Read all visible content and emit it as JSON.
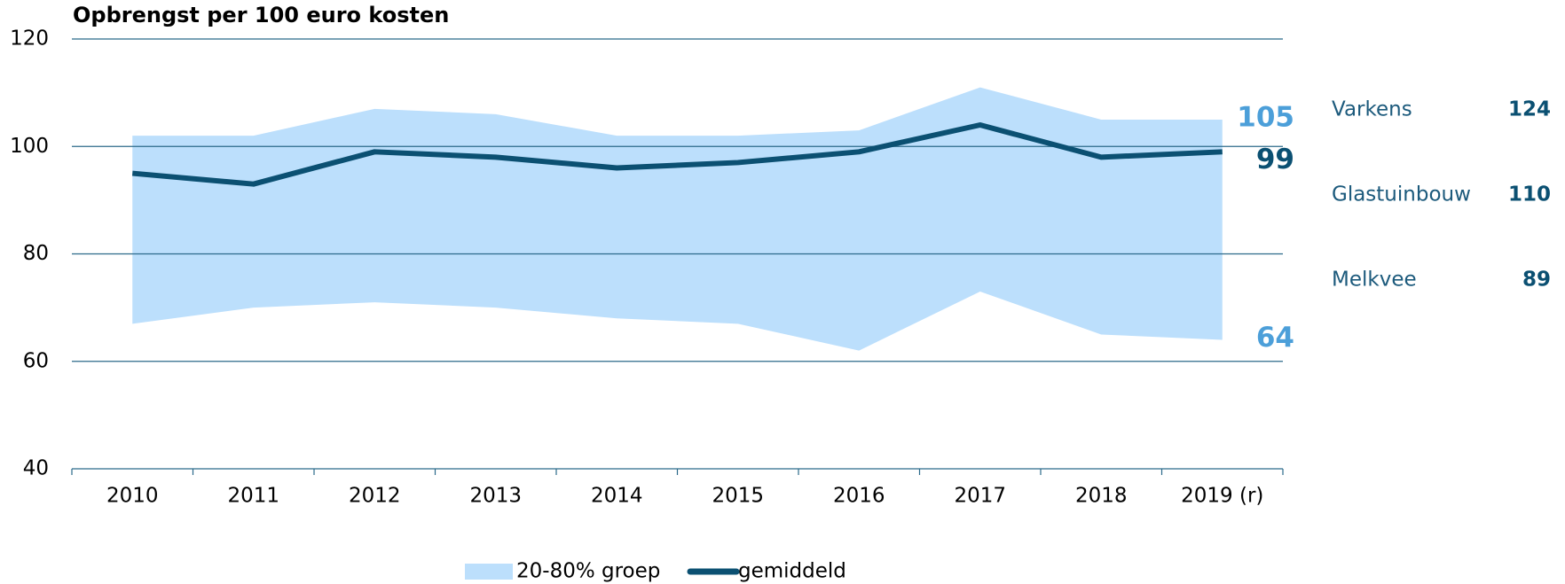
{
  "chart_data": {
    "type": "line",
    "title": "Opbrengst per 100 euro kosten",
    "categories": [
      "2010",
      "2011",
      "2012",
      "2013",
      "2014",
      "2015",
      "2016",
      "2017",
      "2018",
      "2019 (r)"
    ],
    "series": [
      {
        "name": "20-80% groep",
        "color": "#bcdffc",
        "upper": [
          102,
          102,
          107,
          106,
          102,
          102,
          103,
          111,
          105,
          105
        ],
        "lower": [
          67,
          70,
          71,
          70,
          68,
          67,
          62,
          73,
          65,
          64
        ],
        "label_color": "#4c9fd9"
      },
      {
        "name": "gemiddeld",
        "color": "#0b5072",
        "values": [
          95,
          93,
          99,
          98,
          96,
          97,
          99,
          104,
          98,
          99
        ]
      }
    ],
    "ylim": [
      40,
      120
    ],
    "yticks": [
      40,
      60,
      80,
      100,
      120
    ],
    "grid": true,
    "side_panel": [
      {
        "name": "Varkens",
        "value": 124
      },
      {
        "name": "Glastuinbouw",
        "value": 110
      },
      {
        "name": "Melkvee",
        "value": 89
      }
    ]
  }
}
